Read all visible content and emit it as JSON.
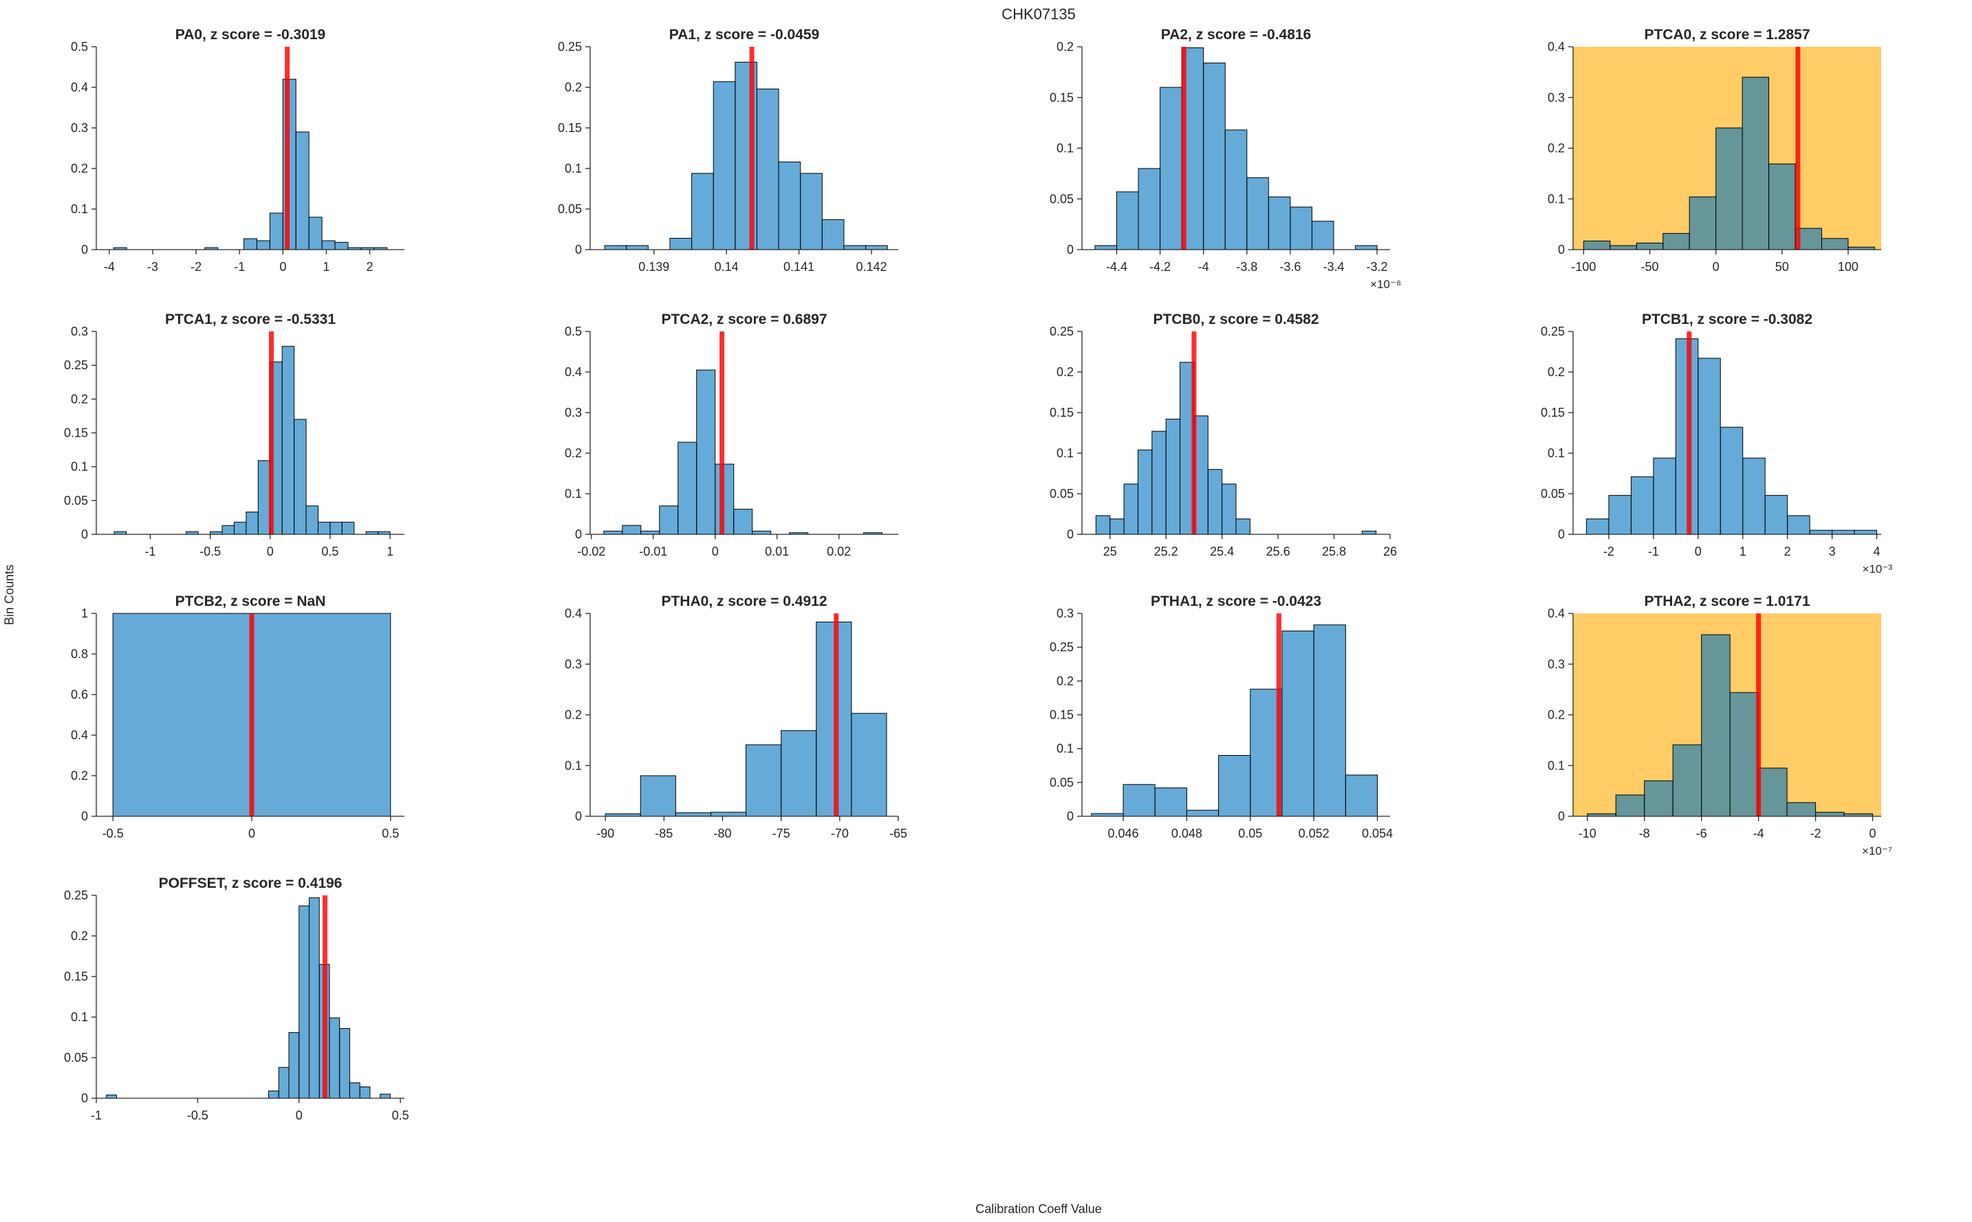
{
  "figure": {
    "title": "CHK07135",
    "xlabel": "Calibration Coeff Value",
    "ylabel": "Bin Counts"
  },
  "colors": {
    "bar_fill": "#0072BD",
    "bar_fill_opacity": 0.6,
    "bar_edge": "#000000",
    "highlight_bg": "#FFCC66",
    "red_line": "#FF0000",
    "red_line_opacity": 0.82,
    "axis": "#262626",
    "text": "#262626"
  },
  "chart_data": [
    {
      "type": "bar",
      "name": "PA0",
      "title": "PA0, z score = -0.3019",
      "highlighted": false,
      "grid": {
        "row": 0,
        "col": 0
      },
      "xlim": [
        -4.3,
        2.8
      ],
      "ylim": [
        0,
        0.5
      ],
      "bins": {
        "start": -3.9,
        "width": 0.3,
        "heights": [
          0.005,
          0,
          0,
          0,
          0,
          0,
          0,
          0.005,
          0,
          0,
          0.027,
          0.022,
          0.09,
          0.42,
          0.29,
          0.08,
          0.022,
          0.018,
          0.005,
          0.005,
          0.005
        ]
      },
      "red_line_x": 0.1,
      "xticks": {
        "values": [
          -4,
          -3,
          -2,
          -1,
          0,
          1,
          2
        ],
        "labels": [
          "-4",
          "-3",
          "-2",
          "-1",
          "0",
          "1",
          "2"
        ]
      },
      "yticks": {
        "values": [
          0,
          0.1,
          0.2,
          0.3,
          0.4,
          0.5
        ],
        "labels": [
          "0",
          "0.1",
          "0.2",
          "0.3",
          "0.4",
          "0.5"
        ]
      },
      "x_exponent": ""
    },
    {
      "type": "bar",
      "name": "PA1",
      "title": "PA1, z score = -0.0459",
      "highlighted": false,
      "grid": {
        "row": 0,
        "col": 1
      },
      "xlim": [
        0.13812,
        0.14237
      ],
      "ylim": [
        0,
        0.25
      ],
      "bins": {
        "start": 0.13832,
        "width": 0.0003,
        "heights": [
          0.005,
          0.005,
          0,
          0.014,
          0.094,
          0.207,
          0.231,
          0.198,
          0.108,
          0.094,
          0.037,
          0.005,
          0.005
        ]
      },
      "red_line_x": 0.14035,
      "xticks": {
        "values": [
          0.139,
          0.14,
          0.141,
          0.142
        ],
        "labels": [
          "0.139",
          "0.14",
          "0.141",
          "0.142"
        ]
      },
      "yticks": {
        "values": [
          0,
          0.05,
          0.1,
          0.15,
          0.2,
          0.25
        ],
        "labels": [
          "0",
          "0.05",
          "0.1",
          "0.15",
          "0.2",
          "0.25"
        ]
      },
      "x_exponent": ""
    },
    {
      "type": "bar",
      "name": "PA2",
      "title": "PA2, z score = -0.4816",
      "highlighted": false,
      "grid": {
        "row": 0,
        "col": 2
      },
      "xlim": [
        -4.56,
        -3.14
      ],
      "ylim": [
        0,
        0.2
      ],
      "bins": {
        "start": -4.5,
        "width": 0.1,
        "heights": [
          0.004,
          0.057,
          0.08,
          0.16,
          0.199,
          0.184,
          0.118,
          0.071,
          0.052,
          0.042,
          0.028,
          0,
          0.004
        ]
      },
      "red_line_x": -4.09,
      "xticks": {
        "values": [
          -4.4,
          -4.2,
          -4,
          -3.8,
          -3.6,
          -3.4,
          -3.2
        ],
        "labels": [
          "-4.4",
          "-4.2",
          "-4",
          "-3.8",
          "-3.6",
          "-3.4",
          "-3.2"
        ]
      },
      "yticks": {
        "values": [
          0,
          0.05,
          0.1,
          0.15,
          0.2
        ],
        "labels": [
          "0",
          "0.05",
          "0.1",
          "0.15",
          "0.2"
        ]
      },
      "x_exponent": "×10⁻⁸"
    },
    {
      "type": "bar",
      "name": "PTCA0",
      "title": "PTCA0, z score = 1.2857",
      "highlighted": true,
      "grid": {
        "row": 0,
        "col": 3
      },
      "xlim": [
        -108,
        125
      ],
      "ylim": [
        0,
        0.4
      ],
      "bins": {
        "start": -100,
        "width": 20,
        "heights": [
          0.017,
          0.008,
          0.013,
          0.032,
          0.104,
          0.24,
          0.34,
          0.169,
          0.042,
          0.022,
          0.005
        ]
      },
      "red_line_x": 62,
      "xticks": {
        "values": [
          -100,
          -50,
          0,
          50,
          100
        ],
        "labels": [
          "-100",
          "-50",
          "0",
          "50",
          "100"
        ]
      },
      "yticks": {
        "values": [
          0,
          0.1,
          0.2,
          0.3,
          0.4
        ],
        "labels": [
          "0",
          "0.1",
          "0.2",
          "0.3",
          "0.4"
        ]
      },
      "x_exponent": ""
    },
    {
      "type": "bar",
      "name": "PTCA1",
      "title": "PTCA1, z score = -0.5331",
      "highlighted": false,
      "grid": {
        "row": 1,
        "col": 0
      },
      "xlim": [
        -1.45,
        1.12
      ],
      "ylim": [
        0,
        0.3
      ],
      "bins": {
        "start": -1.3,
        "width": 0.1,
        "heights": [
          0.004,
          0,
          0,
          0,
          0,
          0,
          0.004,
          0,
          0.004,
          0.013,
          0.018,
          0.033,
          0.109,
          0.255,
          0.278,
          0.17,
          0.042,
          0.018,
          0.018,
          0.018,
          0,
          0.004,
          0.004
        ]
      },
      "red_line_x": 0.01,
      "xticks": {
        "values": [
          -1,
          -0.5,
          0,
          0.5,
          1
        ],
        "labels": [
          "-1",
          "-0.5",
          "0",
          "0.5",
          "1"
        ]
      },
      "yticks": {
        "values": [
          0,
          0.05,
          0.1,
          0.15,
          0.2,
          0.25,
          0.3
        ],
        "labels": [
          "0",
          "0.05",
          "0.1",
          "0.15",
          "0.2",
          "0.25",
          "0.3"
        ]
      },
      "x_exponent": ""
    },
    {
      "type": "bar",
      "name": "PTCA2",
      "title": "PTCA2, z score = 0.6897",
      "highlighted": false,
      "grid": {
        "row": 1,
        "col": 1
      },
      "xlim": [
        -0.0202,
        0.0296
      ],
      "ylim": [
        0,
        0.5
      ],
      "bins": {
        "start": -0.018,
        "width": 0.003,
        "heights": [
          0.008,
          0.022,
          0.008,
          0.07,
          0.227,
          0.405,
          0.173,
          0.062,
          0.008,
          0,
          0.004,
          0,
          0,
          0,
          0.004
        ]
      },
      "red_line_x": 0.0011,
      "xticks": {
        "values": [
          -0.02,
          -0.01,
          0,
          0.01,
          0.02
        ],
        "labels": [
          "-0.02",
          "-0.01",
          "0",
          "0.01",
          "0.02"
        ]
      },
      "yticks": {
        "values": [
          0,
          0.1,
          0.2,
          0.3,
          0.4,
          0.5
        ],
        "labels": [
          "0",
          "0.1",
          "0.2",
          "0.3",
          "0.4",
          "0.5"
        ]
      },
      "x_exponent": ""
    },
    {
      "type": "bar",
      "name": "PTCB0",
      "title": "PTCB0, z score = 0.4582",
      "highlighted": false,
      "grid": {
        "row": 1,
        "col": 2
      },
      "xlim": [
        24.9,
        26.0
      ],
      "ylim": [
        0,
        0.25
      ],
      "bins": {
        "start": 24.95,
        "width": 0.05,
        "heights": [
          0.023,
          0.019,
          0.062,
          0.104,
          0.127,
          0.142,
          0.212,
          0.146,
          0.08,
          0.062,
          0.019,
          0,
          0,
          0,
          0,
          0,
          0,
          0,
          0,
          0.004
        ]
      },
      "red_line_x": 25.3,
      "xticks": {
        "values": [
          25,
          25.2,
          25.4,
          25.6,
          25.8,
          26
        ],
        "labels": [
          "25",
          "25.2",
          "25.4",
          "25.6",
          "25.8",
          "26"
        ]
      },
      "yticks": {
        "values": [
          0,
          0.05,
          0.1,
          0.15,
          0.2,
          0.25
        ],
        "labels": [
          "0",
          "0.05",
          "0.1",
          "0.15",
          "0.2",
          "0.25"
        ]
      },
      "x_exponent": ""
    },
    {
      "type": "bar",
      "name": "PTCB1",
      "title": "PTCB1, z score = -0.3082",
      "highlighted": false,
      "grid": {
        "row": 1,
        "col": 3
      },
      "xlim": [
        -2.8,
        4.1
      ],
      "ylim": [
        0,
        0.25
      ],
      "bins": {
        "start": -2.5,
        "width": 0.5,
        "heights": [
          0.019,
          0.048,
          0.071,
          0.094,
          0.241,
          0.217,
          0.132,
          0.094,
          0.048,
          0.023,
          0.005,
          0.005,
          0.005
        ]
      },
      "red_line_x": -0.2,
      "xticks": {
        "values": [
          -2,
          -1,
          0,
          1,
          2,
          3,
          4
        ],
        "labels": [
          "-2",
          "-1",
          "0",
          "1",
          "2",
          "3",
          "4"
        ]
      },
      "yticks": {
        "values": [
          0,
          0.05,
          0.1,
          0.15,
          0.2,
          0.25
        ],
        "labels": [
          "0",
          "0.05",
          "0.1",
          "0.15",
          "0.2",
          "0.25"
        ]
      },
      "x_exponent": "×10⁻³"
    },
    {
      "type": "bar",
      "name": "PTCB2",
      "title": "PTCB2, z score = NaN",
      "highlighted": false,
      "grid": {
        "row": 2,
        "col": 0
      },
      "xlim": [
        -0.56,
        0.55
      ],
      "ylim": [
        0,
        1
      ],
      "bins": {
        "start": -0.5,
        "width": 1.0,
        "heights": [
          1.0
        ]
      },
      "red_line_x": 0,
      "xticks": {
        "values": [
          -0.5,
          0,
          0.5
        ],
        "labels": [
          "-0.5",
          "0",
          "0.5"
        ]
      },
      "yticks": {
        "values": [
          0,
          0.2,
          0.4,
          0.6,
          0.8,
          1
        ],
        "labels": [
          "0",
          "0.2",
          "0.4",
          "0.6",
          "0.8",
          "1"
        ]
      },
      "x_exponent": ""
    },
    {
      "type": "bar",
      "name": "PTHA0",
      "title": "PTHA0, z score = 0.4912",
      "highlighted": false,
      "grid": {
        "row": 2,
        "col": 1
      },
      "xlim": [
        -91.3,
        -65.0
      ],
      "ylim": [
        0,
        0.4
      ],
      "bins": {
        "start": -90,
        "width": 3,
        "heights": [
          0.005,
          0.08,
          0.007,
          0.008,
          0.141,
          0.169,
          0.383,
          0.203
        ]
      },
      "red_line_x": -70.3,
      "xticks": {
        "values": [
          -90,
          -85,
          -80,
          -75,
          -70,
          -65
        ],
        "labels": [
          "-90",
          "-85",
          "-80",
          "-75",
          "-70",
          "-65"
        ]
      },
      "yticks": {
        "values": [
          0,
          0.1,
          0.2,
          0.3,
          0.4
        ],
        "labels": [
          "0",
          "0.1",
          "0.2",
          "0.3",
          "0.4"
        ]
      },
      "x_exponent": ""
    },
    {
      "type": "bar",
      "name": "PTHA1",
      "title": "PTHA1, z score = -0.0423",
      "highlighted": false,
      "grid": {
        "row": 2,
        "col": 2
      },
      "xlim": [
        0.0447,
        0.0544
      ],
      "ylim": [
        0,
        0.3
      ],
      "bins": {
        "start": 0.045,
        "width": 0.001,
        "heights": [
          0.004,
          0.047,
          0.042,
          0.009,
          0.09,
          0.188,
          0.274,
          0.283,
          0.061
        ]
      },
      "red_line_x": 0.0509,
      "xticks": {
        "values": [
          0.046,
          0.048,
          0.05,
          0.052,
          0.054
        ],
        "labels": [
          "0.046",
          "0.048",
          "0.05",
          "0.052",
          "0.054"
        ]
      },
      "yticks": {
        "values": [
          0,
          0.05,
          0.1,
          0.15,
          0.2,
          0.25,
          0.3
        ],
        "labels": [
          "0",
          "0.05",
          "0.1",
          "0.15",
          "0.2",
          "0.25",
          "0.3"
        ]
      },
      "x_exponent": ""
    },
    {
      "type": "bar",
      "name": "PTHA2",
      "title": "PTHA2, z score = 1.0171",
      "highlighted": true,
      "grid": {
        "row": 2,
        "col": 3
      },
      "xlim": [
        -10.5,
        0.3
      ],
      "ylim": [
        0,
        0.4
      ],
      "bins": {
        "start": -10,
        "width": 1,
        "heights": [
          0.005,
          0.042,
          0.07,
          0.141,
          0.358,
          0.244,
          0.095,
          0.027,
          0.008,
          0.005
        ]
      },
      "red_line_x": -4.0,
      "xticks": {
        "values": [
          -10,
          -8,
          -6,
          -4,
          -2,
          0
        ],
        "labels": [
          "-10",
          "-8",
          "-6",
          "-4",
          "-2",
          "0"
        ]
      },
      "yticks": {
        "values": [
          0,
          0.1,
          0.2,
          0.3,
          0.4
        ],
        "labels": [
          "0",
          "0.1",
          "0.2",
          "0.3",
          "0.4"
        ]
      },
      "x_exponent": "×10⁻⁷"
    },
    {
      "type": "bar",
      "name": "POFFSET",
      "title": "POFFSET, z score = 0.4196",
      "highlighted": false,
      "grid": {
        "row": 3,
        "col": 0
      },
      "xlim": [
        -1.0,
        0.52
      ],
      "ylim": [
        0,
        0.25
      ],
      "bins": {
        "start": -0.95,
        "width": 0.05,
        "heights": [
          0.004,
          0,
          0,
          0,
          0,
          0,
          0,
          0,
          0,
          0,
          0,
          0,
          0,
          0,
          0,
          0,
          0.009,
          0.038,
          0.081,
          0.237,
          0.247,
          0.165,
          0.099,
          0.086,
          0.019,
          0.014,
          0,
          0.005
        ]
      },
      "red_line_x": 0.128,
      "xticks": {
        "values": [
          -1,
          -0.5,
          0,
          0.5
        ],
        "labels": [
          "-1",
          "-0.5",
          "0",
          "0.5"
        ]
      },
      "yticks": {
        "values": [
          0,
          0.05,
          0.1,
          0.15,
          0.2,
          0.25
        ],
        "labels": [
          "0",
          "0.05",
          "0.1",
          "0.15",
          "0.2",
          "0.25"
        ]
      },
      "x_exponent": ""
    }
  ]
}
